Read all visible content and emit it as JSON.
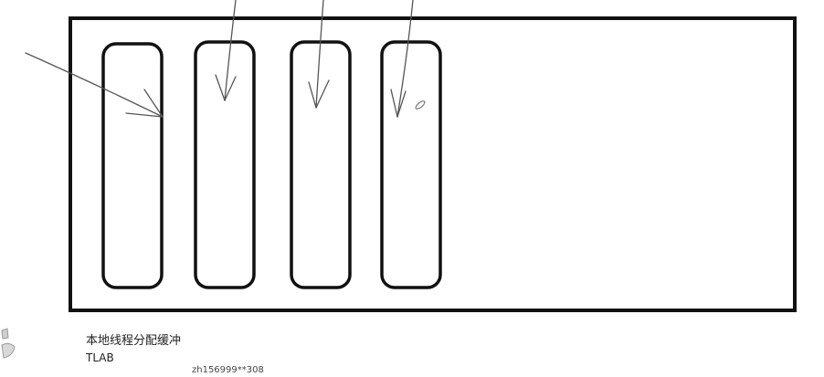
{
  "caption": {
    "title_cn": "本地线程分配缓冲",
    "title_en": "TLAB"
  },
  "watermark": {
    "text": "zh156999**308"
  },
  "colors": {
    "stroke": "#111111",
    "arrow": "#555555",
    "background": "#ffffff"
  },
  "diagram": {
    "buffers": [
      {
        "name": "tlab-buffer-1",
        "arrow_from": "left"
      },
      {
        "name": "tlab-buffer-2",
        "arrow_from": "top"
      },
      {
        "name": "tlab-buffer-3",
        "arrow_from": "top"
      },
      {
        "name": "tlab-buffer-4",
        "arrow_from": "top"
      }
    ]
  }
}
